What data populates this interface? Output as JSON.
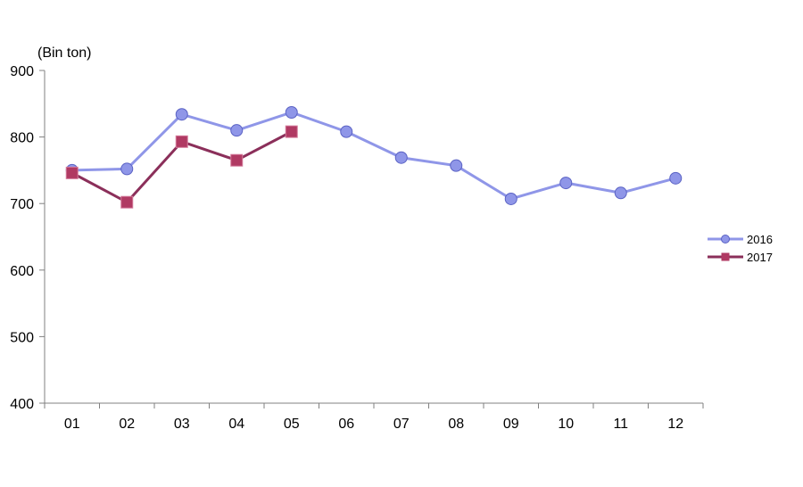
{
  "chart_data": {
    "type": "line",
    "unit_label": "(Bin ton)",
    "categories": [
      "01",
      "02",
      "03",
      "04",
      "05",
      "06",
      "07",
      "08",
      "09",
      "10",
      "11",
      "12"
    ],
    "ylim": [
      400,
      900
    ],
    "yticks": [
      400,
      500,
      600,
      700,
      800,
      900
    ],
    "grid": false,
    "legend_position": "right",
    "series": [
      {
        "name": "2016",
        "color": "#8f96e8",
        "marker": "circle",
        "values": [
          750,
          752,
          834,
          810,
          837,
          808,
          769,
          757,
          707,
          731,
          716,
          738
        ]
      },
      {
        "name": "2017",
        "color": "#8b2f5a",
        "marker": "square",
        "marker_fill": "#b03a63",
        "values": [
          746,
          702,
          793,
          765,
          808,
          null,
          null,
          null,
          null,
          null,
          null,
          null
        ]
      }
    ]
  }
}
